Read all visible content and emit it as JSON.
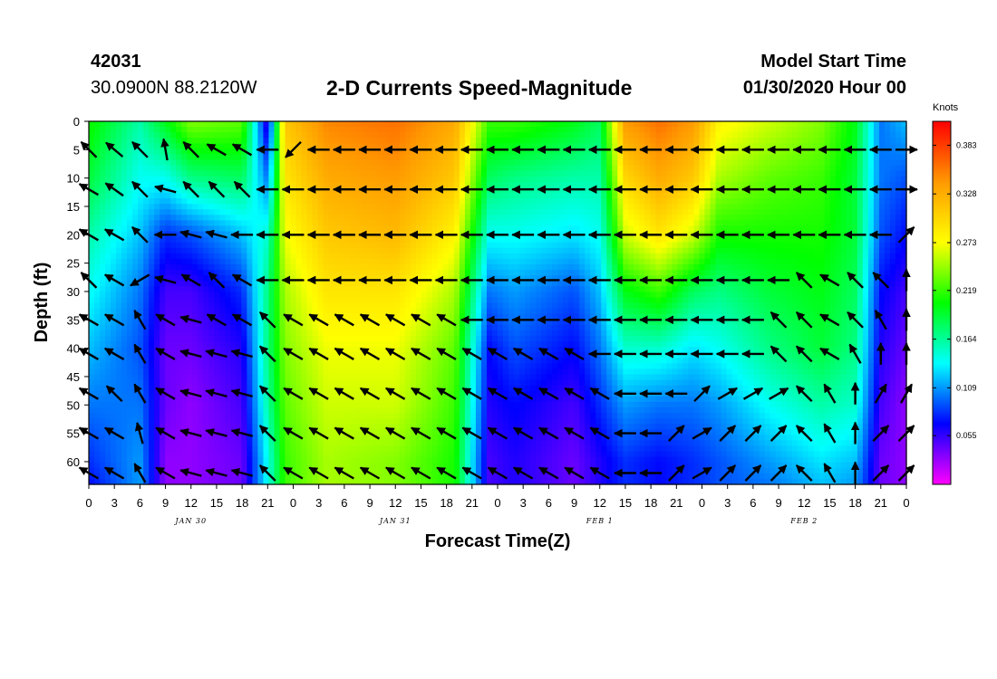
{
  "header": {
    "station_id": "42031",
    "coordinates": "30.0900N 88.2120W",
    "title": "2-D Currents Speed-Magnitude",
    "model_start_label": "Model Start Time",
    "model_start_value": "01/30/2020 Hour 00"
  },
  "chart_data": {
    "type": "heatmap",
    "title": "2-D Currents Speed-Magnitude",
    "xlabel": "Forecast Time(Z)",
    "ylabel": "Depth (ft)",
    "x_ticks": [
      "0",
      "3",
      "6",
      "9",
      "12",
      "15",
      "18",
      "21",
      "0",
      "3",
      "6",
      "9",
      "12",
      "15",
      "18",
      "21",
      "0",
      "3",
      "6",
      "9",
      "12",
      "15",
      "18",
      "21",
      "0",
      "3",
      "6",
      "9",
      "12",
      "15",
      "18",
      "21",
      "0"
    ],
    "x_range_hours": [
      0,
      96
    ],
    "day_labels": [
      {
        "label": "JAN 30",
        "hour": 12
      },
      {
        "label": "JAN 31",
        "hour": 36
      },
      {
        "label": "FEB 1",
        "hour": 60
      },
      {
        "label": "FEB 2",
        "hour": 84
      }
    ],
    "y_ticks": [
      0,
      5,
      10,
      15,
      20,
      25,
      30,
      35,
      40,
      45,
      50,
      55,
      60
    ],
    "ylim": [
      0,
      64
    ],
    "y_inverted": true,
    "colorbar": {
      "units": "Knots",
      "tick_values": [
        "0.383",
        "0.328",
        "0.273",
        "0.219",
        "0.164",
        "0.109",
        "0.055"
      ],
      "tick_numbers": [
        0.383,
        0.328,
        0.273,
        0.219,
        0.164,
        0.109,
        0.055
      ],
      "range": [
        0.0,
        0.41
      ],
      "colors": [
        "#ff00ff",
        "#0000ff",
        "#00ffff",
        "#00ff00",
        "#ffff00",
        "#ff9900",
        "#ff0000"
      ]
    },
    "speed_grid": {
      "hours": [
        0,
        6,
        9,
        12,
        18,
        21,
        23,
        28,
        36,
        43,
        47,
        50,
        57,
        60,
        63,
        67,
        71,
        74,
        80,
        86,
        90,
        93,
        96
      ],
      "depths": [
        0,
        10,
        20,
        30,
        40,
        50,
        60,
        64
      ],
      "values": [
        [
          0.21,
          0.19,
          0.16,
          0.14,
          0.12,
          0.1,
          0.08,
          0.07
        ],
        [
          0.16,
          0.14,
          0.12,
          0.1,
          0.09,
          0.1,
          0.11,
          0.11
        ],
        [
          0.2,
          0.14,
          0.08,
          0.05,
          0.04,
          0.04,
          0.03,
          0.03
        ],
        [
          0.24,
          0.17,
          0.09,
          0.05,
          0.04,
          0.03,
          0.03,
          0.03
        ],
        [
          0.23,
          0.18,
          0.12,
          0.08,
          0.06,
          0.05,
          0.04,
          0.04
        ],
        [
          0.05,
          0.1,
          0.15,
          0.17,
          0.17,
          0.16,
          0.14,
          0.14
        ],
        [
          0.31,
          0.29,
          0.27,
          0.25,
          0.24,
          0.23,
          0.22,
          0.22
        ],
        [
          0.35,
          0.33,
          0.31,
          0.29,
          0.27,
          0.26,
          0.25,
          0.25
        ],
        [
          0.36,
          0.34,
          0.32,
          0.29,
          0.27,
          0.26,
          0.24,
          0.24
        ],
        [
          0.33,
          0.31,
          0.28,
          0.25,
          0.23,
          0.22,
          0.21,
          0.21
        ],
        [
          0.22,
          0.18,
          0.14,
          0.1,
          0.07,
          0.06,
          0.05,
          0.05
        ],
        [
          0.22,
          0.17,
          0.14,
          0.11,
          0.09,
          0.07,
          0.06,
          0.06
        ],
        [
          0.2,
          0.16,
          0.13,
          0.09,
          0.07,
          0.05,
          0.04,
          0.04
        ],
        [
          0.18,
          0.16,
          0.14,
          0.12,
          0.1,
          0.08,
          0.06,
          0.06
        ],
        [
          0.34,
          0.3,
          0.26,
          0.2,
          0.15,
          0.11,
          0.08,
          0.08
        ],
        [
          0.36,
          0.33,
          0.29,
          0.22,
          0.15,
          0.1,
          0.07,
          0.07
        ],
        [
          0.34,
          0.31,
          0.26,
          0.18,
          0.13,
          0.1,
          0.08,
          0.08
        ],
        [
          0.28,
          0.25,
          0.21,
          0.17,
          0.14,
          0.11,
          0.09,
          0.09
        ],
        [
          0.26,
          0.23,
          0.21,
          0.19,
          0.17,
          0.14,
          0.11,
          0.1
        ],
        [
          0.24,
          0.22,
          0.21,
          0.2,
          0.19,
          0.16,
          0.13,
          0.12
        ],
        [
          0.2,
          0.19,
          0.19,
          0.18,
          0.17,
          0.15,
          0.12,
          0.11
        ],
        [
          0.1,
          0.1,
          0.09,
          0.07,
          0.06,
          0.05,
          0.04,
          0.04
        ],
        [
          0.12,
          0.09,
          0.07,
          0.05,
          0.04,
          0.03,
          0.03,
          0.03
        ]
      ]
    },
    "vector_field": {
      "hours": [
        0,
        3,
        6,
        9,
        12,
        15,
        18,
        21,
        24,
        27,
        30,
        33,
        36,
        39,
        42,
        45,
        48,
        51,
        54,
        57,
        60,
        63,
        66,
        69,
        72,
        75,
        78,
        81,
        84,
        87,
        90,
        93,
        96
      ],
      "depths": [
        5,
        12,
        20,
        28,
        35,
        41,
        48,
        55,
        62
      ],
      "directions_deg": [
        [
          315,
          310,
          315,
          350,
          315,
          300,
          300,
          270,
          225,
          270,
          270,
          270,
          270,
          270,
          270,
          270,
          270,
          270,
          270,
          270,
          270,
          270,
          270,
          270,
          270,
          270,
          270,
          270,
          270,
          270,
          270,
          270,
          90
        ],
        [
          300,
          305,
          315,
          285,
          315,
          315,
          315,
          270,
          270,
          270,
          270,
          270,
          270,
          270,
          270,
          270,
          270,
          270,
          270,
          270,
          270,
          270,
          270,
          270,
          270,
          270,
          270,
          270,
          270,
          270,
          270,
          270,
          90
        ],
        [
          300,
          300,
          315,
          270,
          285,
          285,
          270,
          270,
          270,
          270,
          270,
          270,
          270,
          270,
          270,
          270,
          270,
          270,
          270,
          270,
          270,
          270,
          270,
          270,
          270,
          270,
          270,
          270,
          270,
          270,
          270,
          270,
          45
        ],
        [
          315,
          300,
          240,
          285,
          300,
          315,
          300,
          270,
          270,
          270,
          270,
          270,
          270,
          270,
          270,
          270,
          270,
          270,
          270,
          270,
          270,
          270,
          270,
          270,
          270,
          270,
          270,
          270,
          315,
          300,
          315,
          315,
          0
        ],
        [
          300,
          300,
          330,
          300,
          285,
          300,
          300,
          315,
          300,
          300,
          300,
          300,
          300,
          300,
          300,
          270,
          270,
          270,
          270,
          270,
          270,
          270,
          270,
          270,
          270,
          270,
          270,
          315,
          315,
          300,
          315,
          330,
          0
        ],
        [
          300,
          300,
          330,
          300,
          285,
          285,
          285,
          315,
          300,
          300,
          300,
          300,
          300,
          300,
          300,
          300,
          300,
          300,
          300,
          300,
          270,
          270,
          270,
          270,
          270,
          270,
          270,
          315,
          315,
          300,
          330,
          0,
          0
        ],
        [
          300,
          315,
          330,
          300,
          285,
          285,
          285,
          315,
          300,
          300,
          300,
          300,
          300,
          300,
          300,
          300,
          300,
          300,
          300,
          300,
          300,
          270,
          270,
          270,
          45,
          60,
          60,
          60,
          315,
          330,
          0,
          30,
          30
        ],
        [
          300,
          300,
          345,
          300,
          285,
          285,
          285,
          315,
          300,
          300,
          300,
          300,
          300,
          300,
          300,
          300,
          300,
          300,
          300,
          300,
          300,
          270,
          270,
          45,
          60,
          45,
          45,
          45,
          315,
          330,
          0,
          45,
          45
        ],
        [
          300,
          300,
          330,
          300,
          285,
          285,
          285,
          315,
          300,
          300,
          300,
          300,
          300,
          300,
          300,
          300,
          300,
          300,
          300,
          300,
          300,
          270,
          270,
          45,
          60,
          45,
          45,
          45,
          315,
          330,
          0,
          45,
          45
        ]
      ]
    }
  }
}
